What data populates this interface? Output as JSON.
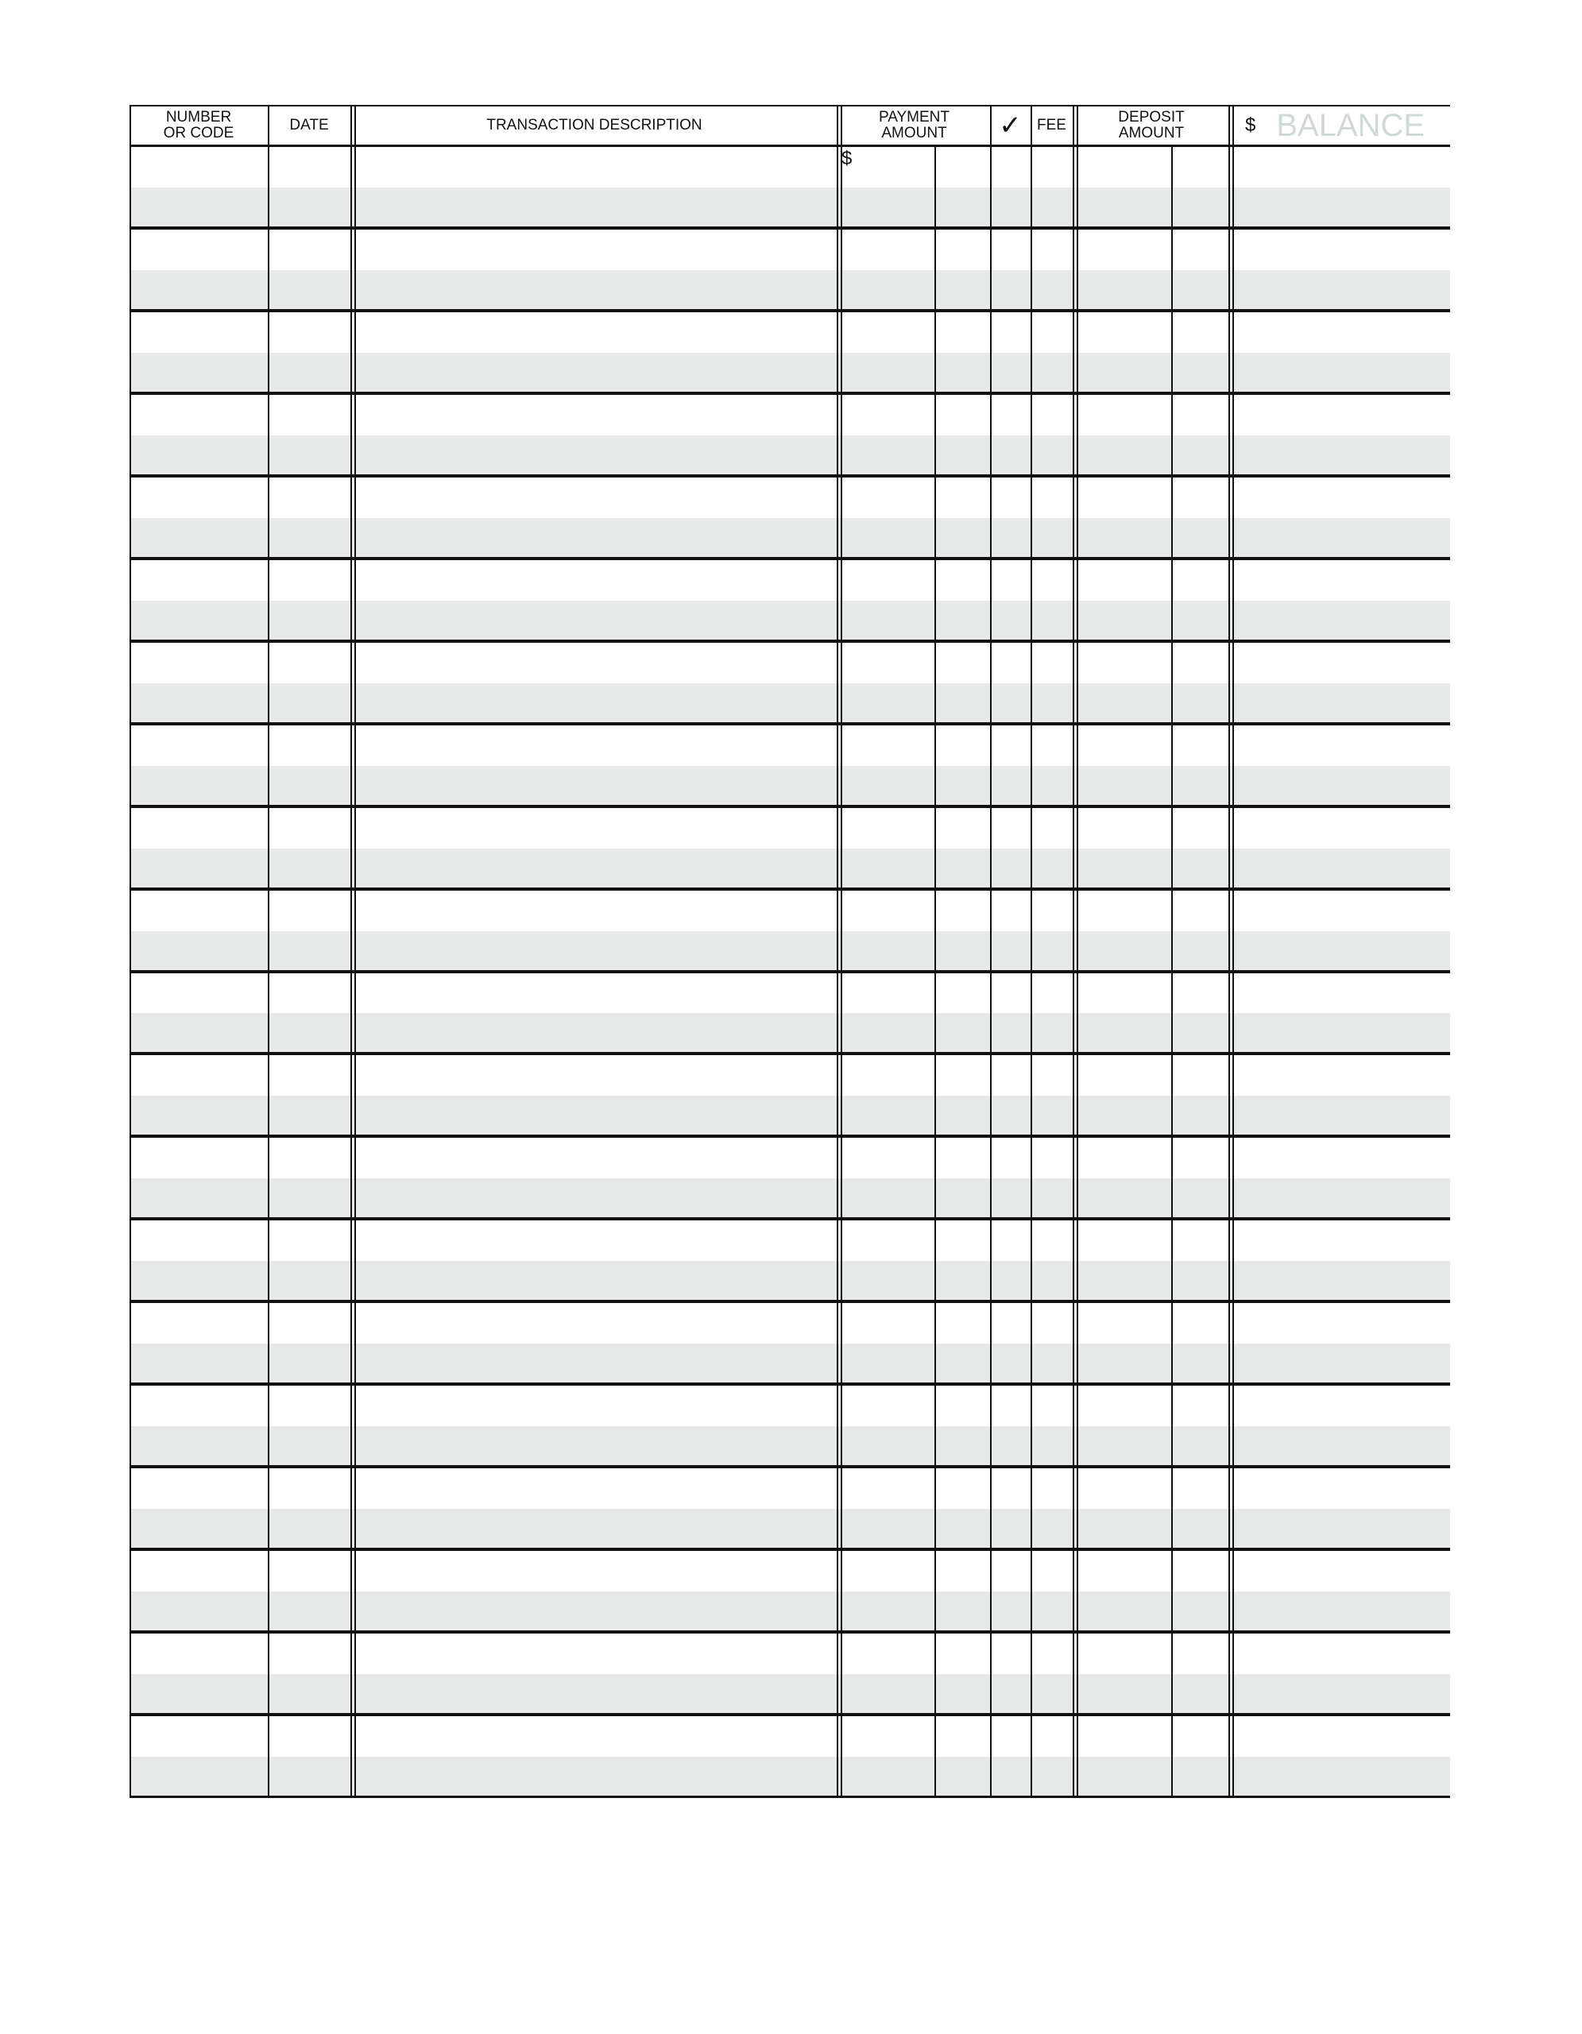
{
  "headers": {
    "number": "NUMBER OR CODE",
    "date": "DATE",
    "description": "TRANSACTION DESCRIPTION",
    "payment": "PAYMENT AMOUNT",
    "check": "✓",
    "fee": "FEE",
    "deposit": "DEPOSIT AMOUNT",
    "balance_symbol": "$",
    "balance": "BALANCE"
  },
  "first_row_payment_symbol": "$",
  "row_count": 20,
  "colors": {
    "stripe": "#e6e9e8",
    "balance_label": "#d2d8d6",
    "lines": "#111111"
  }
}
